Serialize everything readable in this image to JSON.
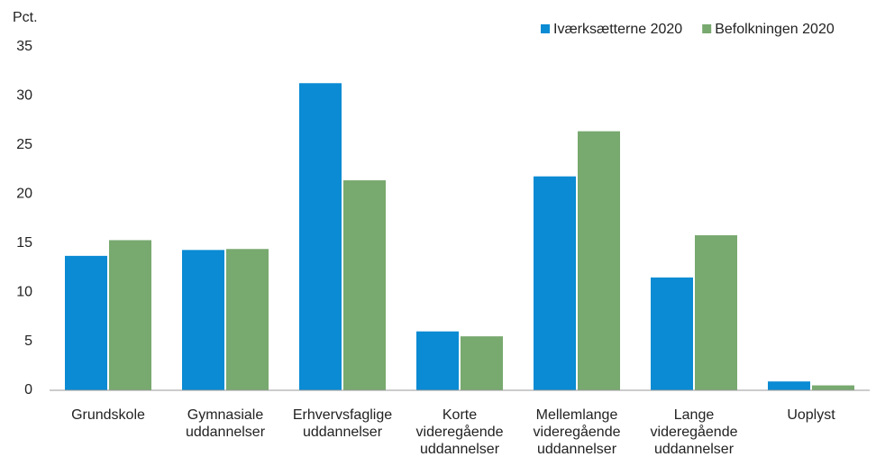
{
  "chart_data": {
    "type": "bar",
    "y_label": "Pct.",
    "categories": [
      "Grundskole",
      "Gymnasiale\nuddannelser",
      "Erhvervsfaglige\nuddannelser",
      "Korte\nvideregående\nuddannelser",
      "Mellemlange\nvideregående\nuddannelser",
      "Lange\nvideregående\nuddannelser",
      "Uoplyst"
    ],
    "series": [
      {
        "name": "Iværksætterne 2020",
        "color": "#0a8bd3",
        "values": [
          13.7,
          14.3,
          31.3,
          6.0,
          21.8,
          11.5,
          0.9
        ]
      },
      {
        "name": "Befolkningen 2020",
        "color": "#78a96f",
        "values": [
          15.3,
          14.4,
          21.4,
          5.5,
          26.4,
          15.8,
          0.5
        ]
      }
    ],
    "ylim": [
      0,
      35
    ],
    "yticks": [
      0,
      5,
      10,
      15,
      20,
      25,
      30,
      35
    ],
    "grid": false,
    "legend": "top-right"
  }
}
